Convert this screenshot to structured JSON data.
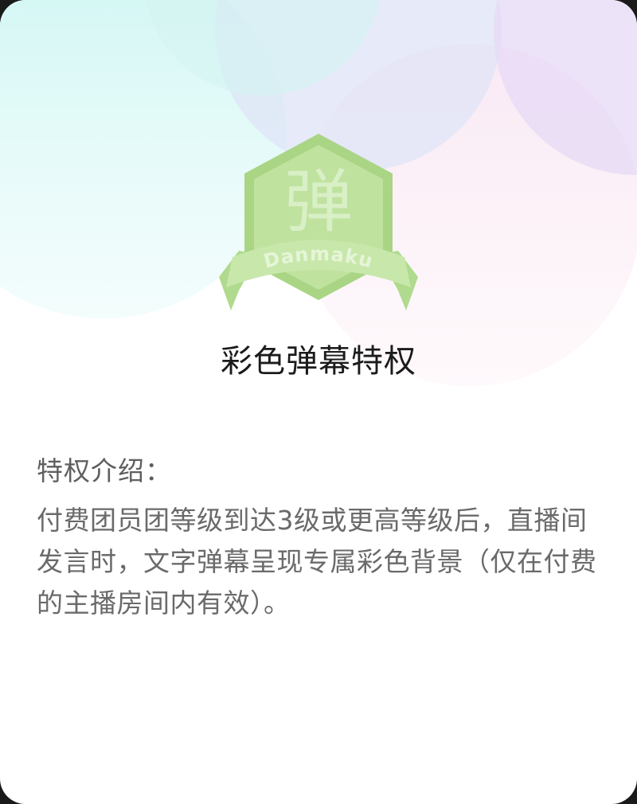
{
  "badge": {
    "glyph": "弹",
    "ribbon_text": "Danmaku",
    "accent_color": "#bde29a",
    "accent_dark": "#a6d47c"
  },
  "privilege": {
    "title": "彩色弹幕特权",
    "intro_heading": "特权介绍：",
    "intro_body": "付费团员团等级到达3级或更高等级后，直播间发言时，文字弹幕呈现专属彩色背景（仅在付费的主播房间内有效）。"
  },
  "decor_colors": {
    "cyan": "#d6f6f4",
    "lavender": "#e7e8f8",
    "pink": "#fcecf5",
    "purple": "#eee4f8"
  }
}
